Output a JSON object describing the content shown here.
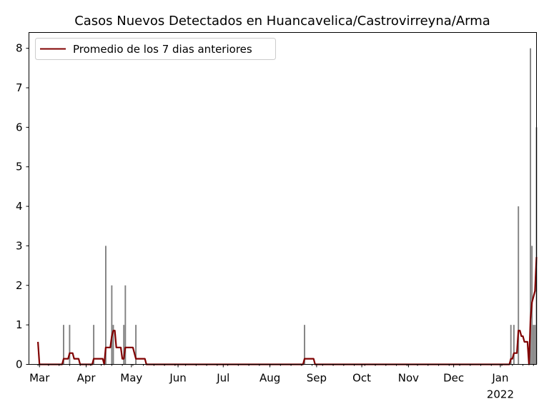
{
  "chart_data": {
    "type": "bar+line",
    "title": "Casos Nuevos Detectados en Huancavelica/Castrovirreyna/Arma",
    "xlabel": "",
    "ylabel": "",
    "xlim": [
      "2021-02-22",
      "2022-01-25"
    ],
    "ylim": [
      0,
      8.4
    ],
    "y_ticks": [
      0,
      1,
      2,
      3,
      4,
      5,
      6,
      7,
      8
    ],
    "x_ticks": [
      {
        "date": "2021-03-01",
        "label": "Mar"
      },
      {
        "date": "2021-04-01",
        "label": "Apr"
      },
      {
        "date": "2021-05-01",
        "label": "May"
      },
      {
        "date": "2021-06-01",
        "label": "Jun"
      },
      {
        "date": "2021-07-01",
        "label": "Jul"
      },
      {
        "date": "2021-08-01",
        "label": "Aug"
      },
      {
        "date": "2021-09-01",
        "label": "Sep"
      },
      {
        "date": "2021-10-01",
        "label": "Oct"
      },
      {
        "date": "2021-11-01",
        "label": "Nov"
      },
      {
        "date": "2021-12-01",
        "label": "Dec"
      },
      {
        "date": "2022-01-01",
        "label": "Jan",
        "sublabel": "2022"
      }
    ],
    "grid": false,
    "legend": "top-left",
    "data_start": "2021-02-28",
    "data_end": "2022-01-25",
    "bar_series": {
      "color": "#808080",
      "daily_cases_nonzero": [
        {
          "date": "2021-03-17",
          "value": 1
        },
        {
          "date": "2021-03-21",
          "value": 1
        },
        {
          "date": "2021-04-06",
          "value": 1
        },
        {
          "date": "2021-04-14",
          "value": 3
        },
        {
          "date": "2021-04-18",
          "value": 2
        },
        {
          "date": "2021-04-19",
          "value": 1
        },
        {
          "date": "2021-04-26",
          "value": 1
        },
        {
          "date": "2021-04-27",
          "value": 2
        },
        {
          "date": "2021-05-04",
          "value": 1
        },
        {
          "date": "2021-08-24",
          "value": 1
        },
        {
          "date": "2022-01-08",
          "value": 1
        },
        {
          "date": "2022-01-10",
          "value": 1
        },
        {
          "date": "2022-01-13",
          "value": 4
        },
        {
          "date": "2022-01-21",
          "value": 8
        },
        {
          "date": "2022-01-22",
          "value": 3
        },
        {
          "date": "2022-01-23",
          "value": 1
        },
        {
          "date": "2022-01-24",
          "value": 1
        },
        {
          "date": "2022-01-25",
          "value": 6
        }
      ]
    },
    "line_series": {
      "name": "Promedio de los 7 dias anteriores",
      "color": "#800000",
      "first_value": 0.57
    }
  }
}
